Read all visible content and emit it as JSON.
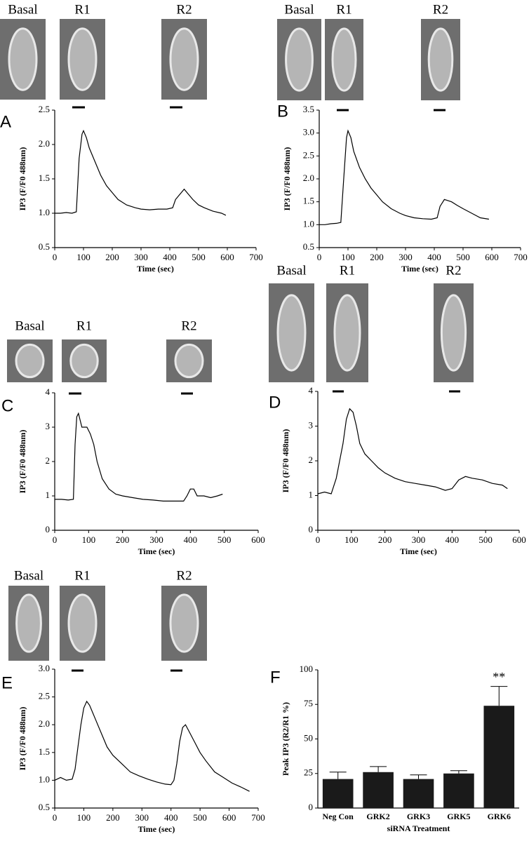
{
  "chart_data": [
    {
      "type": "line",
      "panel": "A",
      "images": [
        "Basal",
        "R1",
        "R2"
      ],
      "ylabel": "IP3 (F/F0 488nm)",
      "xlabel": "Time (sec)",
      "color": "#000000",
      "xlim": [
        0,
        700
      ],
      "xticks": [
        0,
        100,
        200,
        300,
        400,
        500,
        600,
        700
      ],
      "ylim": [
        0.5,
        2.5
      ],
      "yticks": [
        0.5,
        {
          "value": 1,
          "label": "1.0"
        },
        1.5,
        {
          "value": 2,
          "label": "2.0"
        },
        2.5
      ],
      "x": [
        0,
        20,
        40,
        60,
        75,
        85,
        95,
        100,
        110,
        120,
        140,
        160,
        180,
        200,
        220,
        250,
        280,
        300,
        330,
        360,
        390,
        410,
        420,
        440,
        450,
        460,
        480,
        500,
        520,
        550,
        580,
        595
      ],
      "values": [
        1.0,
        1.0,
        1.01,
        1.0,
        1.02,
        1.8,
        2.15,
        2.2,
        2.1,
        1.95,
        1.75,
        1.55,
        1.4,
        1.3,
        1.2,
        1.12,
        1.08,
        1.06,
        1.05,
        1.06,
        1.06,
        1.08,
        1.2,
        1.3,
        1.35,
        1.3,
        1.2,
        1.12,
        1.08,
        1.03,
        1.0,
        0.97
      ]
    },
    {
      "type": "line",
      "panel": "B",
      "images": [
        "Basal",
        "R1",
        "R2"
      ],
      "ylabel": "IP3 (F/F0 488nm)",
      "xlabel": "Time (sec)",
      "color": "#000000",
      "xlim": [
        0,
        700
      ],
      "xticks": [
        0,
        100,
        200,
        300,
        400,
        500,
        600,
        700
      ],
      "ylim": [
        0.5,
        3.5
      ],
      "yticks": [
        0.5,
        {
          "value": 1,
          "label": "1.0"
        },
        1.5,
        {
          "value": 2,
          "label": "2.0"
        },
        2.5,
        {
          "value": 3,
          "label": "3.0"
        },
        3.5
      ],
      "x": [
        0,
        20,
        40,
        60,
        75,
        85,
        95,
        100,
        110,
        120,
        140,
        160,
        180,
        200,
        220,
        250,
        280,
        300,
        330,
        360,
        390,
        410,
        420,
        435,
        460,
        480,
        500,
        530,
        560,
        590
      ],
      "values": [
        1.0,
        1.0,
        1.02,
        1.03,
        1.05,
        2.0,
        2.9,
        3.05,
        2.9,
        2.6,
        2.25,
        2.0,
        1.8,
        1.65,
        1.5,
        1.35,
        1.25,
        1.2,
        1.15,
        1.13,
        1.12,
        1.15,
        1.4,
        1.55,
        1.5,
        1.42,
        1.35,
        1.25,
        1.15,
        1.12
      ]
    },
    {
      "type": "line",
      "panel": "C",
      "images": [
        "Basal",
        "R1",
        "R2"
      ],
      "ylabel": "IP3 (F/F0 488nm)",
      "xlabel": "Time (sec)",
      "color": "#000000",
      "xlim": [
        0,
        600
      ],
      "xticks": [
        0,
        100,
        200,
        300,
        400,
        500,
        600
      ],
      "ylim": [
        0,
        4
      ],
      "yticks": [
        0,
        1,
        2,
        3,
        4
      ],
      "x": [
        0,
        20,
        40,
        55,
        60,
        65,
        70,
        80,
        95,
        105,
        115,
        125,
        140,
        160,
        180,
        200,
        230,
        260,
        290,
        320,
        350,
        380,
        390,
        400,
        410,
        420,
        440,
        460,
        480,
        495
      ],
      "values": [
        0.9,
        0.9,
        0.88,
        0.9,
        2.5,
        3.3,
        3.4,
        3.0,
        3.0,
        2.8,
        2.5,
        2.0,
        1.5,
        1.2,
        1.05,
        1.0,
        0.95,
        0.9,
        0.88,
        0.85,
        0.85,
        0.85,
        1.0,
        1.2,
        1.2,
        1.0,
        1.0,
        0.95,
        1.0,
        1.05
      ]
    },
    {
      "type": "line",
      "panel": "D",
      "images": [
        "Basal",
        "R1",
        "R2"
      ],
      "ylabel": "IP3 (F/F0 488nm)",
      "xlabel": "Time (sec)",
      "color": "#000000",
      "xlim": [
        0,
        600
      ],
      "xticks": [
        0,
        100,
        200,
        300,
        400,
        500,
        600
      ],
      "ylim": [
        0,
        4
      ],
      "yticks": [
        0,
        1,
        2,
        3,
        4
      ],
      "x": [
        0,
        20,
        40,
        55,
        65,
        75,
        85,
        95,
        105,
        115,
        125,
        140,
        160,
        180,
        200,
        230,
        260,
        290,
        320,
        350,
        380,
        400,
        420,
        440,
        460,
        490,
        520,
        550,
        565
      ],
      "values": [
        1.05,
        1.1,
        1.05,
        1.5,
        2.0,
        2.5,
        3.2,
        3.5,
        3.4,
        3.0,
        2.5,
        2.2,
        2.0,
        1.8,
        1.65,
        1.5,
        1.4,
        1.35,
        1.3,
        1.25,
        1.15,
        1.2,
        1.45,
        1.55,
        1.5,
        1.45,
        1.35,
        1.3,
        1.2
      ]
    },
    {
      "type": "line",
      "panel": "E",
      "images": [
        "Basal",
        "R1",
        "R2"
      ],
      "ylabel": "IP3 (F/F0 488nm)",
      "xlabel": "Time (sec)",
      "color": "#000000",
      "xlim": [
        0,
        700
      ],
      "xticks": [
        0,
        100,
        200,
        300,
        400,
        500,
        600,
        700
      ],
      "ylim": [
        0.5,
        3.0
      ],
      "yticks": [
        0.5,
        {
          "value": 1,
          "label": "1.0"
        },
        1.5,
        {
          "value": 2,
          "label": "2.0"
        },
        2.5,
        {
          "value": 3,
          "label": "3.0"
        }
      ],
      "x": [
        0,
        20,
        40,
        60,
        70,
        80,
        90,
        100,
        110,
        120,
        140,
        160,
        180,
        200,
        230,
        260,
        290,
        320,
        350,
        380,
        400,
        410,
        420,
        430,
        440,
        450,
        460,
        480,
        500,
        520,
        550,
        580,
        610,
        640,
        670
      ],
      "values": [
        1.0,
        1.05,
        1.0,
        1.02,
        1.2,
        1.6,
        2.0,
        2.3,
        2.42,
        2.35,
        2.1,
        1.85,
        1.6,
        1.45,
        1.3,
        1.15,
        1.08,
        1.02,
        0.97,
        0.93,
        0.92,
        1.0,
        1.3,
        1.7,
        1.95,
        2.0,
        1.9,
        1.7,
        1.5,
        1.35,
        1.15,
        1.05,
        0.95,
        0.88,
        0.8
      ]
    },
    {
      "type": "bar",
      "panel": "F",
      "ylabel": "Peak IP3 (R2/R1 %)",
      "xlabel": "siRNA Treatment",
      "color": "#1a1a1a",
      "categories": [
        "Neg Con",
        "GRK2",
        "GRK3",
        "GRK5",
        "GRK6"
      ],
      "values": [
        21,
        26,
        21,
        25,
        74
      ],
      "errors": [
        5,
        4,
        3,
        2,
        14
      ],
      "ylim": [
        0,
        100
      ],
      "yticks": [
        0,
        25,
        50,
        75,
        100
      ],
      "annotations": [
        {
          "text": "**",
          "category": "GRK6"
        }
      ]
    }
  ]
}
